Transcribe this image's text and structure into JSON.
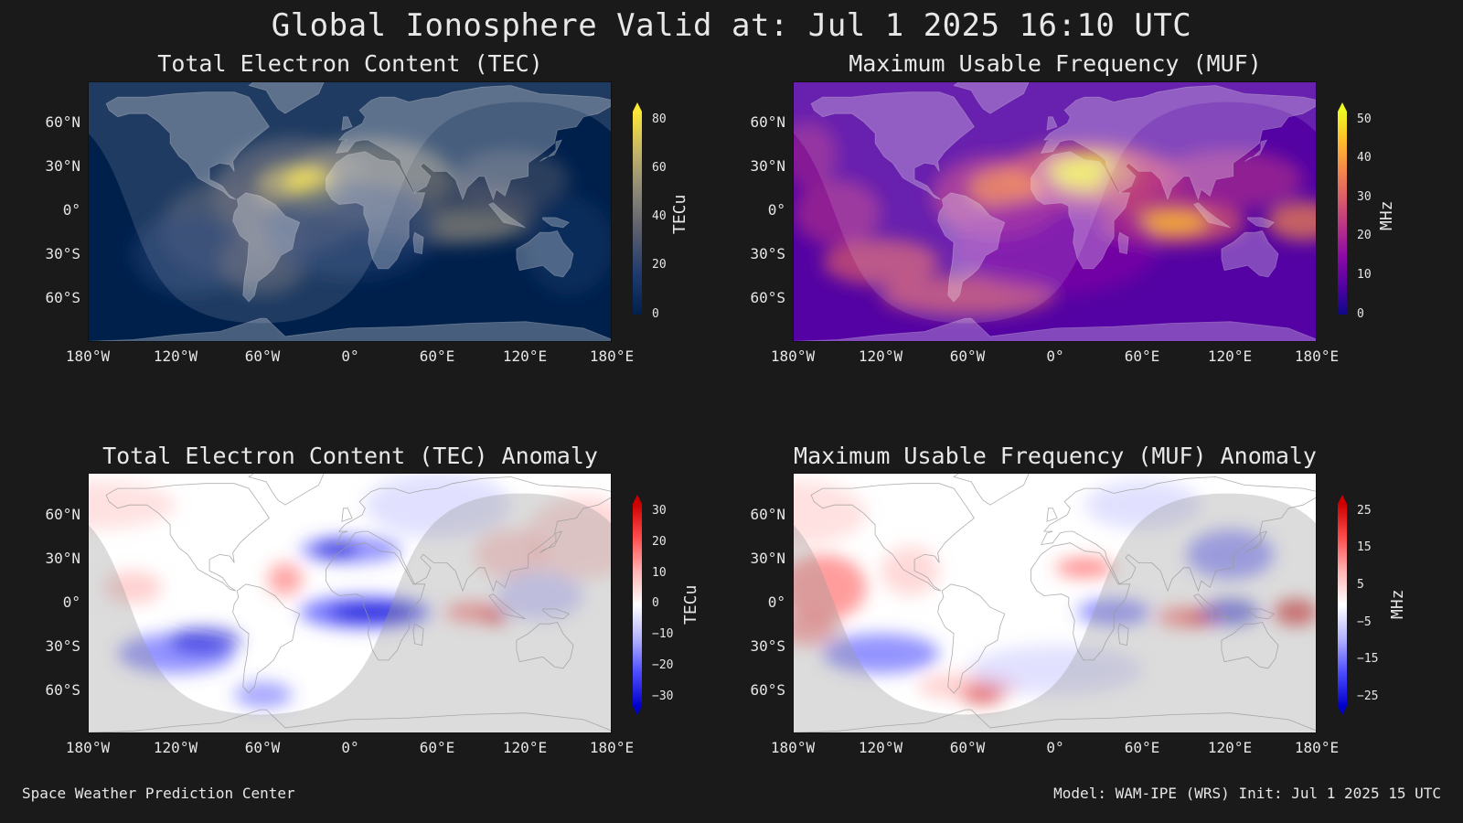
{
  "title": "Global Ionosphere Valid at: Jul 1 2025 16:10 UTC",
  "footer": {
    "left": "Space Weather Prediction Center",
    "right": "Model: WAM-IPE (WRS) Init: Jul 1 2025 15 UTC"
  },
  "lat_labels": [
    "60°N",
    "30°N",
    "0°",
    "30°S",
    "60°S"
  ],
  "lon_labels": [
    "180°W",
    "120°W",
    "60°W",
    "0°",
    "60°E",
    "120°E",
    "180°E"
  ],
  "panels": [
    {
      "title": "Total Electron Content (TEC)",
      "unit": "TECu",
      "colormap": "cividis",
      "ticks": [
        "80",
        "60",
        "40",
        "20",
        "0"
      ],
      "colors": [
        "#00204c",
        "#1f3b6e",
        "#575c6d",
        "#8a8678",
        "#c3b369",
        "#fde737"
      ]
    },
    {
      "title": "Maximum Usable Frequency (MUF)",
      "unit": "MHz",
      "colormap": "plasma",
      "ticks": [
        "50",
        "40",
        "30",
        "20",
        "10",
        "0"
      ],
      "colors": [
        "#0d0887",
        "#5402a3",
        "#8b0aa5",
        "#b83289",
        "#db5c68",
        "#f48849",
        "#febd2a",
        "#f0f921"
      ]
    },
    {
      "title": "Total Electron Content (TEC) Anomaly",
      "unit": "TECu",
      "colormap": "bwr",
      "ticks": [
        "30",
        "20",
        "10",
        "0",
        "−10",
        "−20",
        "−30"
      ],
      "colors": [
        "#0000cc",
        "#4d4dff",
        "#b3b3ff",
        "#ffffff",
        "#ffb3b3",
        "#ff4d4d",
        "#cc0000"
      ]
    },
    {
      "title": "Maximum Usable Frequency (MUF) Anomaly",
      "unit": "MHz",
      "colormap": "bwr",
      "ticks": [
        "25",
        "15",
        "5",
        "−5",
        "−15",
        "−25"
      ],
      "colors": [
        "#0000cc",
        "#4d4dff",
        "#b3b3ff",
        "#ffffff",
        "#ffb3b3",
        "#ff4d4d",
        "#cc0000"
      ]
    }
  ]
}
